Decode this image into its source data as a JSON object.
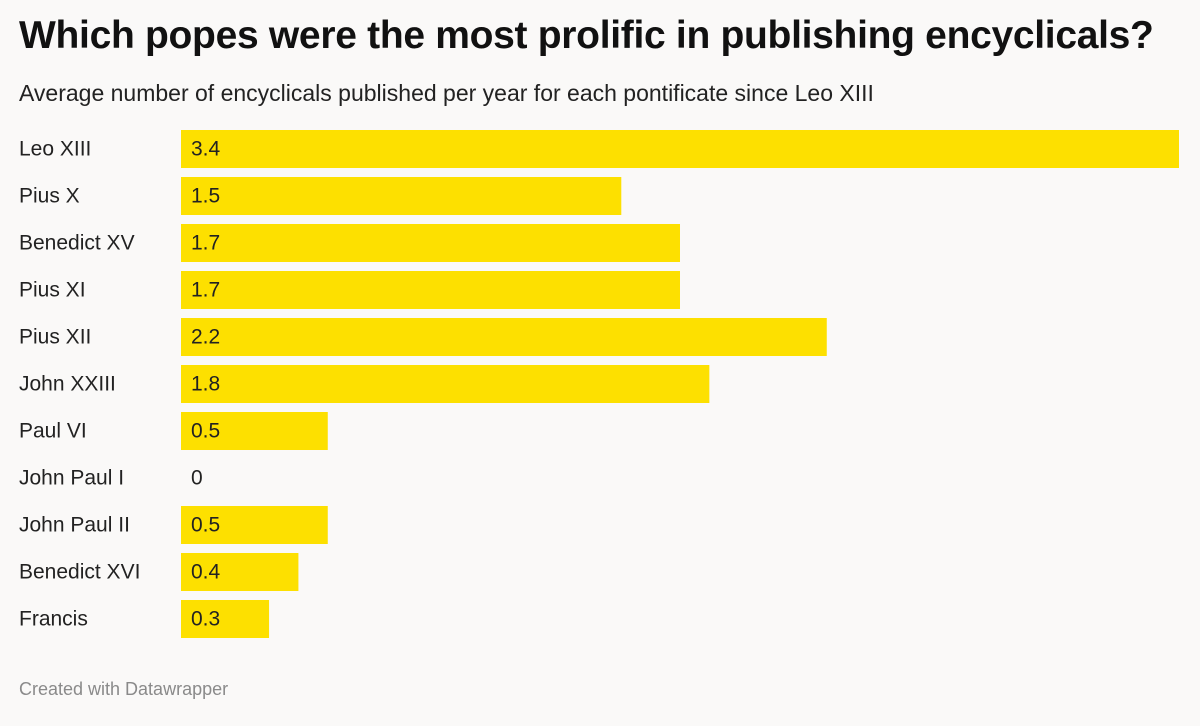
{
  "chart_data": {
    "type": "bar",
    "orientation": "horizontal",
    "title": "Which popes were the most prolific in publishing encyclicals?",
    "subtitle": "Average number of encyclicals published per year for each pontificate since Leo XIII",
    "categories": [
      "Leo XIII",
      "Pius X",
      "Benedict XV",
      "Pius XI",
      "Pius XII",
      "John XXIII",
      "Paul VI",
      "John Paul I",
      "John Paul II",
      "Benedict XVI",
      "Francis"
    ],
    "values": [
      3.4,
      1.5,
      1.7,
      1.7,
      2.2,
      1.8,
      0.5,
      0,
      0.5,
      0.4,
      0.3
    ],
    "value_labels": [
      "3.4",
      "1.5",
      "1.7",
      "1.7",
      "2.2",
      "1.8",
      "0.5",
      "0",
      "0.5",
      "0.4",
      "0.3"
    ],
    "xlim": [
      0,
      3.4
    ],
    "bar_color": "#fde000",
    "grid": false,
    "legend": false
  },
  "footer": {
    "credit": "Created with Datawrapper"
  }
}
